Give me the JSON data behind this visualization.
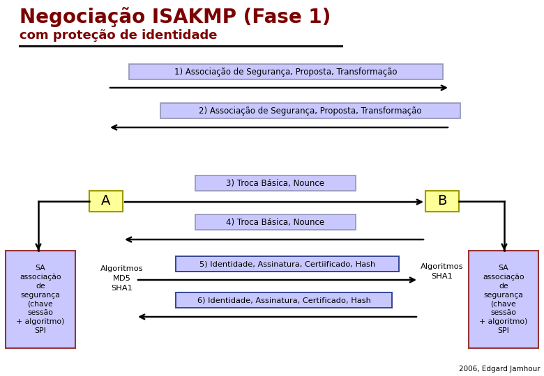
{
  "title_line1": "Negociação ISAKMP (Fase 1)",
  "title_line2": "com proteção de identidade",
  "title_color": "#7B0000",
  "bg_color": "#FFFFFF",
  "msg1": "1) Associação de Segurança, Proposta, Transformação",
  "msg2": "2) Associação de Segurança, Proposta, Transformação",
  "msg3": "3) Troca Básica, Nounce",
  "msg4": "4) Troca Básica, Nounce",
  "msg5": "5) Identidade, Assinatura, Certiificado, Hash",
  "msg6": "6) Identidade, Assinatura, Certificado, Hash",
  "box_fill_blue": "#C8C8FF",
  "box_fill_yellow": "#FFFF99",
  "box_edge_blue": "#9999BB",
  "box_edge_red": "#993333",
  "node_A_label": "A",
  "node_B_label": "B",
  "sa_text_lines": [
    "SA",
    "associação",
    "de",
    "segurança",
    "(chave",
    "sessão",
    "+ algoritmo)",
    "SPI"
  ],
  "algo_left_lines": [
    "Algoritmos",
    "MD5",
    "SHA1"
  ],
  "algo_right_lines": [
    "Algoritmos",
    "SHA1"
  ],
  "footer": "2006, Edgard Jamhour"
}
